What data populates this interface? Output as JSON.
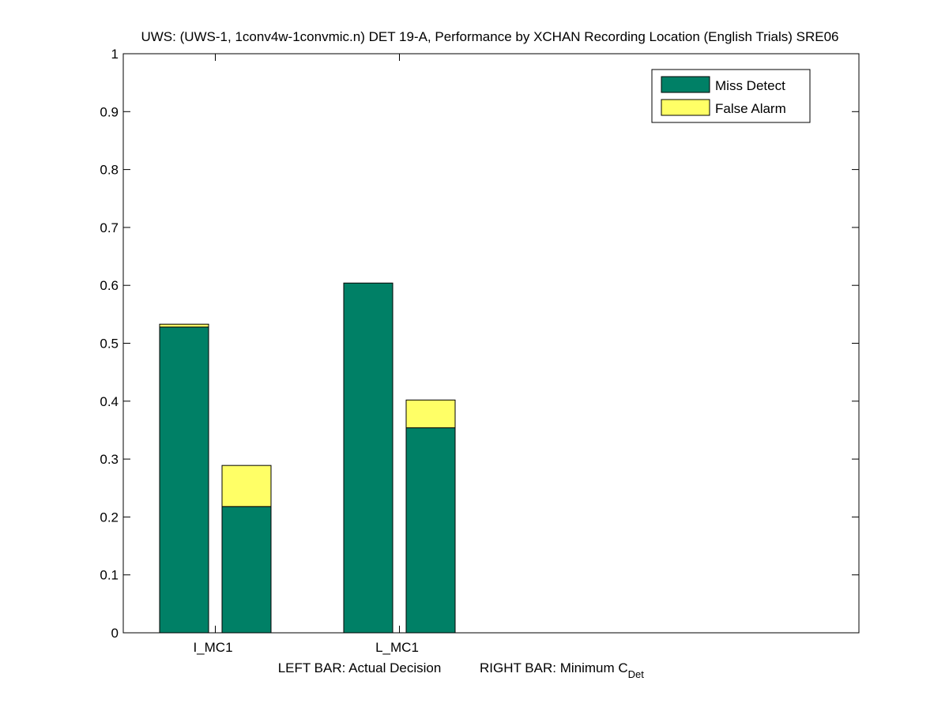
{
  "chart_data": {
    "type": "bar",
    "stacked": true,
    "title": "UWS: (UWS-1, 1conv4w-1convmic.n) DET 19-A,  Performance by XCHAN Recording Location (English Trials) SRE06",
    "xlabel_left": "LEFT BAR: Actual Decision",
    "xlabel_right_main": "RIGHT BAR: Minimum C",
    "xlabel_right_sub": "Det",
    "ylim": [
      0,
      1
    ],
    "yticks": [
      "0",
      "0.1",
      "0.2",
      "0.3",
      "0.4",
      "0.5",
      "0.6",
      "0.7",
      "0.8",
      "0.9",
      "1"
    ],
    "categories": [
      "I_MC1",
      "L_MC1"
    ],
    "legend_position": "top-right",
    "grid": false,
    "bar_labels": [
      "Actual Decision",
      "Minimum C_Det"
    ],
    "series": [
      {
        "name": "Miss Detect",
        "color": "#008066",
        "values": {
          "actual": [
            0.528,
            0.604
          ],
          "minimum": [
            0.218,
            0.354
          ]
        }
      },
      {
        "name": "False Alarm",
        "color": "#ffff66",
        "values": {
          "actual": [
            0.005,
            0.0
          ],
          "minimum": [
            0.071,
            0.048
          ]
        }
      }
    ]
  }
}
